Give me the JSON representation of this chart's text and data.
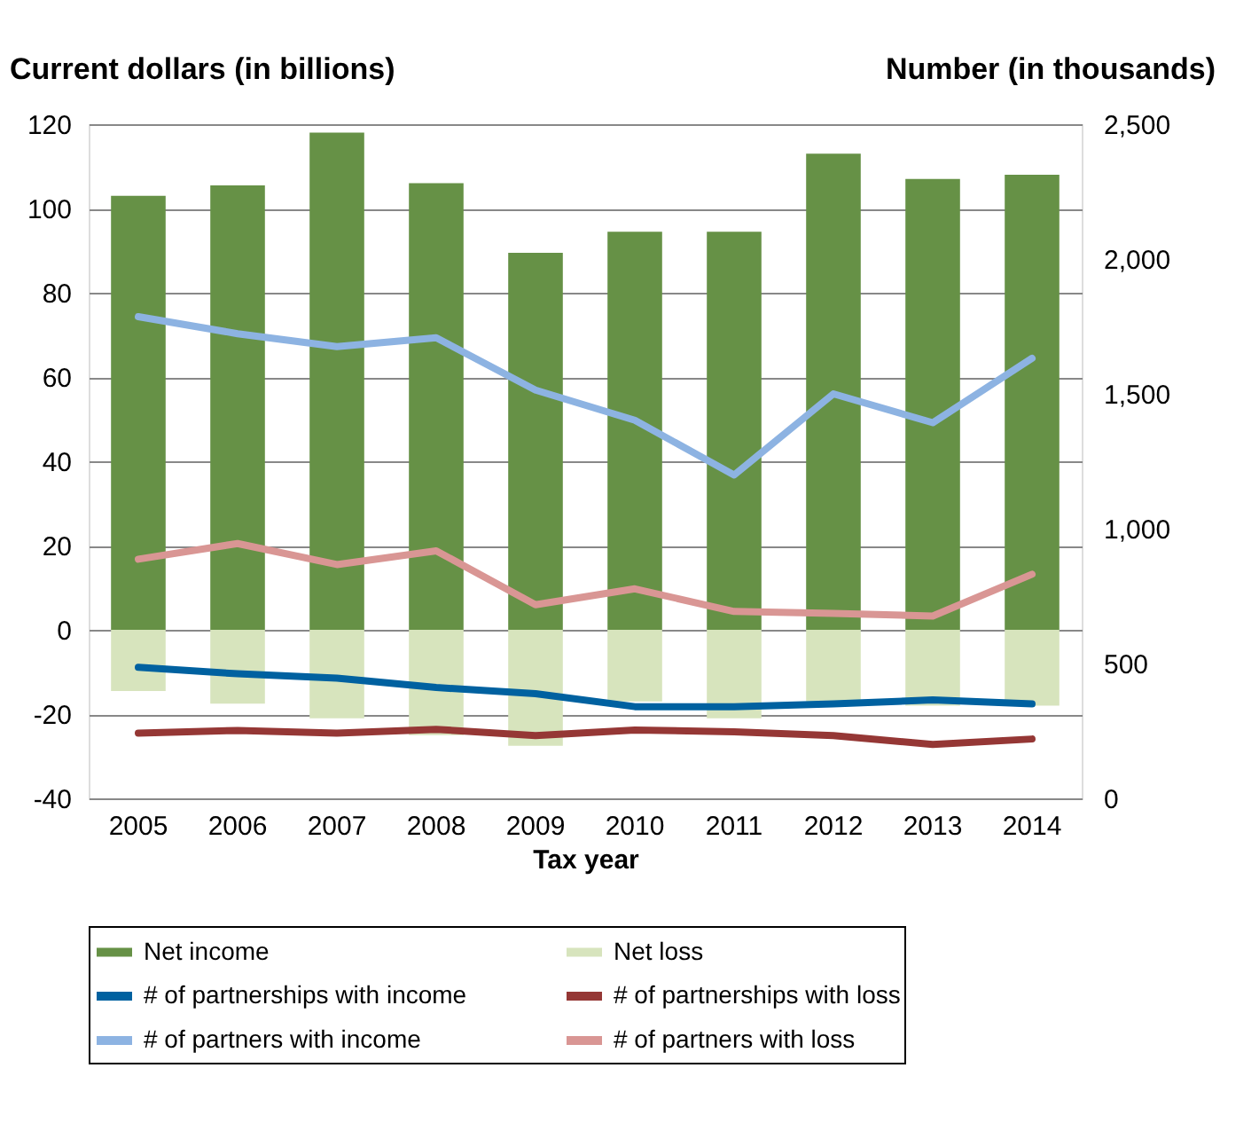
{
  "chart_data": {
    "type": "bar",
    "xlabel": "Tax year",
    "ylabel": "Current dollars (in billions)",
    "y2label": "Number (in thousands)",
    "categories": [
      "2005",
      "2006",
      "2007",
      "2008",
      "2009",
      "2010",
      "2011",
      "2012",
      "2013",
      "2014"
    ],
    "series": [
      {
        "name": "Net income",
        "color": "#669146",
        "values": [
          103,
          105.5,
          118,
          106,
          89.5,
          94.5,
          94.5,
          113,
          107,
          108
        ]
      },
      {
        "name": "Net loss",
        "color": "#d7e4bd",
        "values": [
          -14.5,
          -17.5,
          -21,
          -25,
          -27.5,
          -17,
          -21,
          -17,
          -18,
          -18
        ]
      },
      {
        "name": "# of partnerships with income",
        "type": "line",
        "axis": "y2",
        "color": "#0061a0",
        "values": [
          486,
          462,
          446,
          411,
          388,
          340,
          340,
          350,
          365,
          350
        ]
      },
      {
        "name": "# of partnerships with loss",
        "type": "line",
        "axis": "y2",
        "color": "#953735",
        "values": [
          242,
          252,
          242,
          256,
          233,
          253,
          247,
          233,
          200,
          220
        ]
      },
      {
        "name": "# of partners with income",
        "type": "line",
        "axis": "y2",
        "color": "#8db3e2",
        "values": [
          1786,
          1723,
          1675,
          1708,
          1514,
          1402,
          1199,
          1500,
          1393,
          1632
        ]
      },
      {
        "name": "# of partners with loss",
        "type": "line",
        "axis": "y2",
        "color": "#d99694",
        "values": [
          887,
          945,
          867,
          918,
          718,
          777,
          693,
          686,
          676,
          831
        ]
      }
    ],
    "ylim": [
      -40,
      120
    ],
    "yticks": [
      -40,
      -20,
      0,
      20,
      40,
      60,
      80,
      100,
      120
    ],
    "y2lim": [
      0,
      2500
    ],
    "y2ticks": [
      0,
      500,
      {
        "value": 1000,
        "label": "1,000"
      },
      {
        "value": 1500,
        "label": "1,500"
      },
      {
        "value": 2000,
        "label": "2,000"
      },
      {
        "value": 2500,
        "label": "2,500"
      }
    ],
    "stacked": true,
    "grid": "y",
    "legend": "bottom",
    "line_style": "solid",
    "marker": "none"
  }
}
